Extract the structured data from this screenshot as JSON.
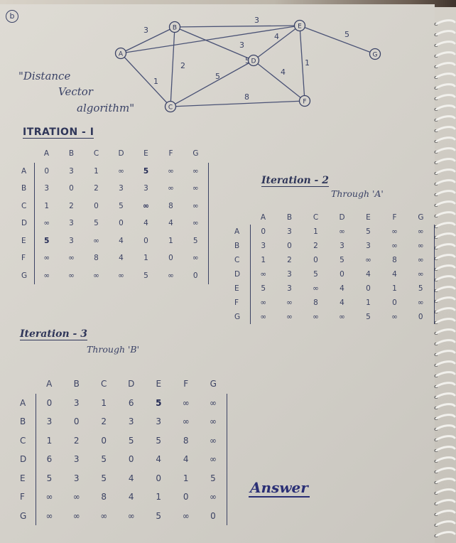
{
  "problem_number": "b",
  "graph": {
    "nodes": [
      "A",
      "B",
      "C",
      "D",
      "E",
      "F",
      "G"
    ],
    "edges": [
      {
        "from": "A",
        "to": "B",
        "weight": "3"
      },
      {
        "from": "A",
        "to": "C",
        "weight": "1"
      },
      {
        "from": "B",
        "to": "C",
        "weight": "2"
      },
      {
        "from": "B",
        "to": "D",
        "weight": "3"
      },
      {
        "from": "B",
        "to": "E",
        "weight": "3"
      },
      {
        "from": "A",
        "to": "E",
        "weight": "5"
      },
      {
        "from": "C",
        "to": "D",
        "weight": "5"
      },
      {
        "from": "C",
        "to": "F",
        "weight": "8"
      },
      {
        "from": "D",
        "to": "E",
        "weight": "4"
      },
      {
        "from": "D",
        "to": "F",
        "weight": "4"
      },
      {
        "from": "E",
        "to": "F",
        "weight": "1"
      },
      {
        "from": "E",
        "to": "G",
        "weight": "5"
      }
    ]
  },
  "side_title": [
    "\"Distance",
    "Vector",
    "algorithm\""
  ],
  "iteration1": {
    "heading": "ITRATION - I",
    "columns": [
      "A",
      "B",
      "C",
      "D",
      "E",
      "F",
      "G"
    ],
    "rows": [
      {
        "label": "A",
        "cells": [
          "0",
          "3",
          "1",
          "∞",
          "5",
          "∞",
          "∞"
        ]
      },
      {
        "label": "B",
        "cells": [
          "3",
          "0",
          "2",
          "3",
          "3",
          "∞",
          "∞"
        ]
      },
      {
        "label": "C",
        "cells": [
          "1",
          "2",
          "0",
          "5",
          "∞",
          "8",
          "∞"
        ]
      },
      {
        "label": "D",
        "cells": [
          "∞",
          "3",
          "5",
          "0",
          "4",
          "4",
          "∞"
        ]
      },
      {
        "label": "E",
        "cells": [
          "5",
          "3",
          "∞",
          "4",
          "0",
          "1",
          "5"
        ]
      },
      {
        "label": "F",
        "cells": [
          "∞",
          "∞",
          "8",
          "4",
          "1",
          "0",
          "∞"
        ]
      },
      {
        "label": "G",
        "cells": [
          "∞",
          "∞",
          "∞",
          "∞",
          "5",
          "∞",
          "0"
        ]
      }
    ]
  },
  "iteration2": {
    "heading": "Iteration - 2",
    "subheading": "Through 'A'",
    "columns": [
      "A",
      "B",
      "C",
      "D",
      "E",
      "F",
      "G"
    ],
    "rows": [
      {
        "label": "A",
        "cells": [
          "0",
          "3",
          "1",
          "∞",
          "5",
          "∞",
          "∞"
        ]
      },
      {
        "label": "B",
        "cells": [
          "3",
          "0",
          "2",
          "3",
          "3",
          "∞",
          "∞"
        ]
      },
      {
        "label": "C",
        "cells": [
          "1",
          "2",
          "0",
          "5",
          "∞",
          "8",
          "∞"
        ]
      },
      {
        "label": "D",
        "cells": [
          "∞",
          "3",
          "5",
          "0",
          "4",
          "4",
          "∞"
        ]
      },
      {
        "label": "E",
        "cells": [
          "5",
          "3",
          "∞",
          "4",
          "0",
          "1",
          "5"
        ]
      },
      {
        "label": "F",
        "cells": [
          "∞",
          "∞",
          "8",
          "4",
          "1",
          "0",
          "∞"
        ]
      },
      {
        "label": "G",
        "cells": [
          "∞",
          "∞",
          "∞",
          "∞",
          "5",
          "∞",
          "0"
        ]
      }
    ]
  },
  "iteration3": {
    "heading": "Iteration - 3",
    "subheading": "Through 'B'",
    "columns": [
      "A",
      "B",
      "C",
      "D",
      "E",
      "F",
      "G"
    ],
    "rows": [
      {
        "label": "A",
        "cells": [
          "0",
          "3",
          "1",
          "6",
          "5",
          "∞",
          "∞"
        ]
      },
      {
        "label": "B",
        "cells": [
          "3",
          "0",
          "2",
          "3",
          "3",
          "∞",
          "∞"
        ]
      },
      {
        "label": "C",
        "cells": [
          "1",
          "2",
          "0",
          "5",
          "5",
          "8",
          "∞"
        ]
      },
      {
        "label": "D",
        "cells": [
          "6",
          "3",
          "5",
          "0",
          "4",
          "4",
          "∞"
        ]
      },
      {
        "label": "E",
        "cells": [
          "5",
          "3",
          "5",
          "4",
          "0",
          "1",
          "5"
        ]
      },
      {
        "label": "F",
        "cells": [
          "∞",
          "∞",
          "8",
          "4",
          "1",
          "0",
          "∞"
        ]
      },
      {
        "label": "G",
        "cells": [
          "∞",
          "∞",
          "∞",
          "∞",
          "5",
          "∞",
          "0"
        ]
      }
    ]
  },
  "answer_label": "Answer",
  "colors": {
    "ink": "#3a4266",
    "answer_ink": "#2a2f75",
    "paper": "#d7d4cd"
  }
}
